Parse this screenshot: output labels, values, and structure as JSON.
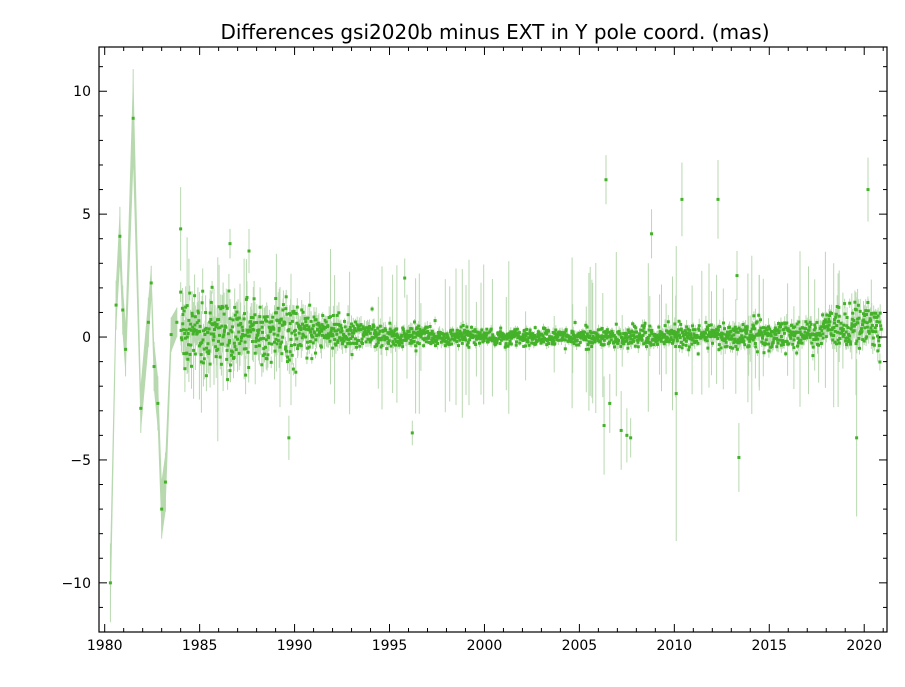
{
  "chart_data": {
    "type": "scatter",
    "title": "Differences gsi2020b minus EXT in Y pole coord. (mas)",
    "xlabel": "",
    "ylabel": "",
    "xlim": [
      1979.7,
      2021.2
    ],
    "ylim": [
      -12.0,
      11.8
    ],
    "x_ticks": [
      1980,
      1985,
      1990,
      1995,
      2000,
      2005,
      2010,
      2015,
      2020
    ],
    "x_tick_labels": [
      "1980",
      "1985",
      "1990",
      "1995",
      "2000",
      "2005",
      "2010",
      "2015",
      "2020"
    ],
    "y_ticks": [
      10,
      5,
      0,
      -5,
      -10
    ],
    "y_tick_labels": [
      "10",
      "5",
      "0",
      "−5",
      "−10"
    ],
    "grid": false,
    "colors": {
      "points": "#44b229",
      "error_band": "#b8d9b0",
      "axes": "#000000"
    },
    "early_series": {
      "x": [
        1980.3,
        1980.6,
        1980.8,
        1980.95,
        1981.1,
        1981.5,
        1981.9,
        1982.3,
        1982.45,
        1982.6,
        1982.8,
        1983.0,
        1983.2,
        1983.5,
        1983.8
      ],
      "y": [
        -10.0,
        1.3,
        4.1,
        1.1,
        -0.5,
        8.9,
        -2.9,
        0.6,
        2.2,
        -1.2,
        -2.7,
        -7.0,
        -5.9,
        0.1,
        0.6
      ],
      "err": [
        1.6,
        1.0,
        1.2,
        1.0,
        1.1,
        2.0,
        1.0,
        1.0,
        0.7,
        1.0,
        1.1,
        1.2,
        1.2,
        0.7,
        0.6
      ]
    },
    "outliers": {
      "x": [
        1984.0,
        1986.6,
        1987.6,
        1989.7,
        1995.8,
        1996.2,
        2006.3,
        2006.4,
        2006.6,
        2007.2,
        2007.5,
        2007.7,
        2008.8,
        2010.1,
        2010.4,
        2012.3,
        2013.3,
        2013.4,
        2019.6,
        2020.2
      ],
      "y": [
        4.4,
        3.8,
        3.5,
        -4.1,
        2.4,
        -3.9,
        -3.6,
        6.4,
        -2.7,
        -3.8,
        -4.0,
        -4.1,
        4.2,
        -2.3,
        5.6,
        5.6,
        2.5,
        -4.9,
        -4.1,
        6.0
      ],
      "err": [
        1.7,
        0.6,
        0.9,
        0.9,
        0.8,
        0.5,
        2.0,
        1.0,
        1.2,
        1.6,
        1.1,
        0.8,
        1.0,
        6.0,
        1.5,
        1.6,
        1.0,
        1.4,
        3.2,
        1.3
      ]
    },
    "dense_series": {
      "x_range": [
        1984.0,
        2020.9
      ],
      "count": 1900,
      "spread_profile": {
        "x": [
          1984,
          1986,
          1988,
          1990,
          1992,
          1995,
          2000,
          2005,
          2008,
          2012,
          2015,
          2017,
          2018.5,
          2020.9
        ],
        "sigma": [
          0.85,
          0.8,
          0.7,
          0.55,
          0.38,
          0.26,
          0.16,
          0.18,
          0.22,
          0.25,
          0.32,
          0.3,
          0.42,
          0.45
        ]
      },
      "offset_profile": {
        "x": [
          1984,
          1990,
          2000,
          2017,
          2018.5,
          2020.9
        ],
        "mean": [
          0.3,
          0.15,
          0.0,
          0.05,
          0.45,
          0.3
        ]
      }
    }
  }
}
